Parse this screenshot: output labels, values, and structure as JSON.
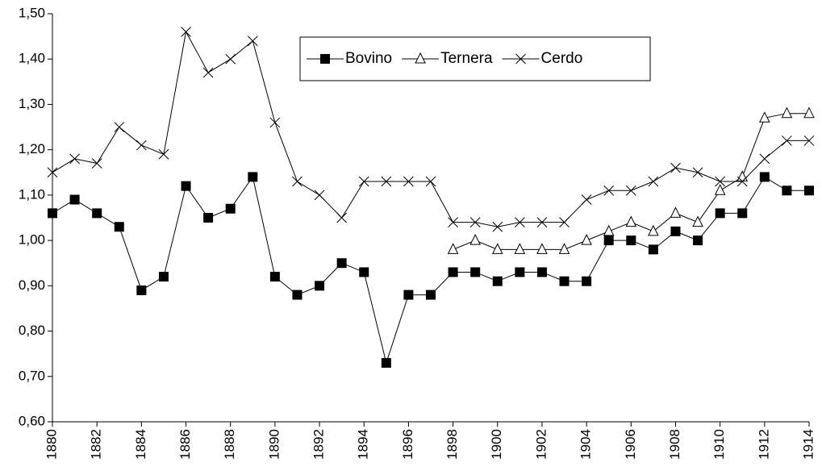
{
  "chart_data": {
    "type": "line",
    "x": [
      1880,
      1881,
      1882,
      1883,
      1884,
      1885,
      1886,
      1887,
      1888,
      1889,
      1890,
      1891,
      1892,
      1893,
      1894,
      1895,
      1896,
      1897,
      1898,
      1899,
      1900,
      1901,
      1902,
      1903,
      1904,
      1905,
      1906,
      1907,
      1908,
      1909,
      1910,
      1911,
      1912,
      1913,
      1914
    ],
    "xlim": [
      1880,
      1914
    ],
    "xticks": [
      1880,
      1882,
      1884,
      1886,
      1888,
      1890,
      1892,
      1894,
      1896,
      1898,
      1900,
      1902,
      1904,
      1906,
      1908,
      1910,
      1912,
      1914
    ],
    "ylim": [
      0.6,
      1.5
    ],
    "yticks": [
      {
        "value": 0.6,
        "label": "0,60"
      },
      {
        "value": 0.7,
        "label": "0,70"
      },
      {
        "value": 0.8,
        "label": "0,80"
      },
      {
        "value": 0.9,
        "label": "0,90"
      },
      {
        "value": 1.0,
        "label": "1,00"
      },
      {
        "value": 1.1,
        "label": "1,10"
      },
      {
        "value": 1.2,
        "label": "1,20"
      },
      {
        "value": 1.3,
        "label": "1,30"
      },
      {
        "value": 1.4,
        "label": "1,40"
      },
      {
        "value": 1.5,
        "label": "1,50"
      }
    ],
    "grid": false,
    "legend": "top",
    "series": [
      {
        "name": "Bovino",
        "color": "#000000",
        "marker": "square",
        "values": [
          1.06,
          1.09,
          1.06,
          1.03,
          0.89,
          0.92,
          1.12,
          1.05,
          1.07,
          1.14,
          0.92,
          0.88,
          0.9,
          0.95,
          0.93,
          0.73,
          0.88,
          0.88,
          0.93,
          0.93,
          0.91,
          0.93,
          0.93,
          0.91,
          0.91,
          1.0,
          1.0,
          0.98,
          1.02,
          1.0,
          1.06,
          1.06,
          1.14,
          1.11,
          1.11
        ]
      },
      {
        "name": "Ternera",
        "color": "#000000",
        "marker": "triangle",
        "values": [
          null,
          null,
          null,
          null,
          null,
          null,
          null,
          null,
          null,
          null,
          null,
          null,
          null,
          null,
          null,
          null,
          null,
          null,
          0.98,
          1.0,
          0.98,
          0.98,
          0.98,
          0.98,
          1.0,
          1.02,
          1.04,
          1.02,
          1.06,
          1.04,
          1.11,
          1.14,
          1.27,
          1.28,
          1.28
        ]
      },
      {
        "name": "Cerdo",
        "color": "#000000",
        "marker": "x",
        "values": [
          1.15,
          1.18,
          1.17,
          1.25,
          1.21,
          1.19,
          1.46,
          1.37,
          1.4,
          1.44,
          1.26,
          1.13,
          1.1,
          1.05,
          1.13,
          1.13,
          1.13,
          1.13,
          1.04,
          1.04,
          1.03,
          1.04,
          1.04,
          1.04,
          1.09,
          1.11,
          1.11,
          1.13,
          1.16,
          1.15,
          1.13,
          1.13,
          1.18,
          1.22,
          1.22
        ]
      }
    ]
  }
}
